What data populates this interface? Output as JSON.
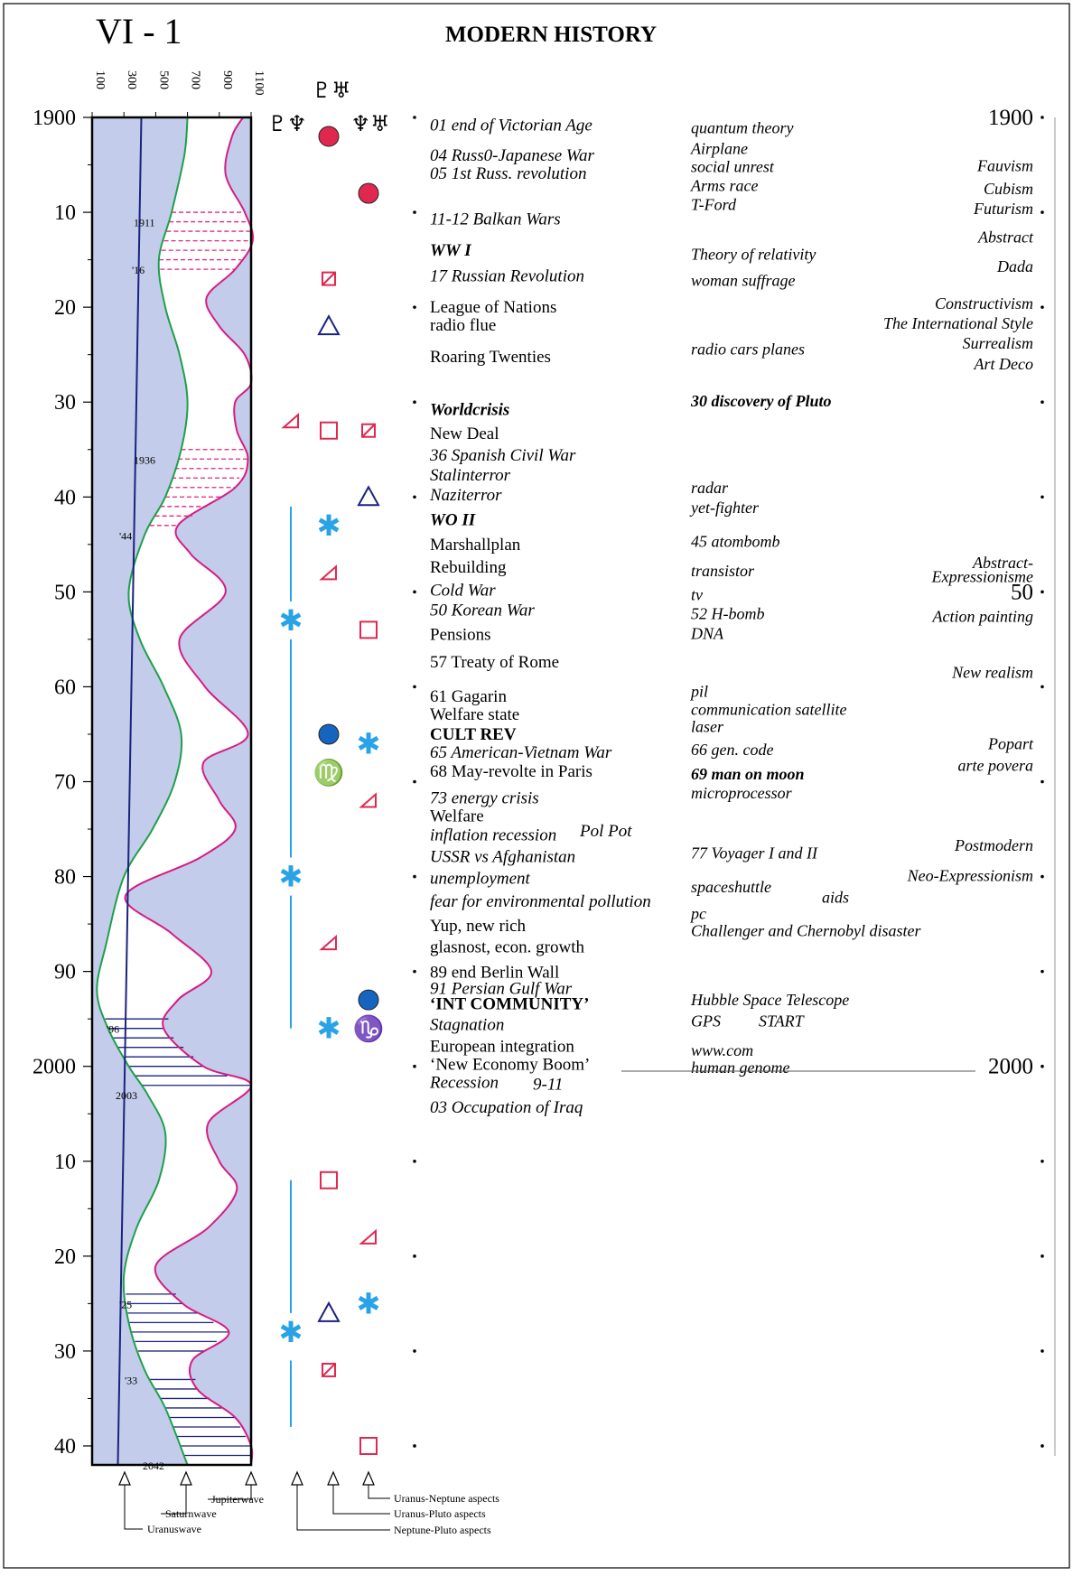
{
  "page_label": "VI - 1",
  "title": "MODERN HISTORY",
  "left_axis": {
    "ticks": [
      {
        "year": 1900,
        "label": "1900"
      },
      {
        "year": 1910,
        "label": "10"
      },
      {
        "year": 1920,
        "label": "20"
      },
      {
        "year": 1930,
        "label": "30"
      },
      {
        "year": 1940,
        "label": "40"
      },
      {
        "year": 1950,
        "label": "50"
      },
      {
        "year": 1960,
        "label": "60"
      },
      {
        "year": 1970,
        "label": "70"
      },
      {
        "year": 1980,
        "label": "80"
      },
      {
        "year": 1990,
        "label": "90"
      },
      {
        "year": 2000,
        "label": "2000"
      },
      {
        "year": 2010,
        "label": "10"
      },
      {
        "year": 2020,
        "label": "20"
      },
      {
        "year": 2030,
        "label": "30"
      },
      {
        "year": 2040,
        "label": "40"
      }
    ]
  },
  "wave_scale": {
    "ticks": [
      {
        "value": 100,
        "label": "100"
      },
      {
        "value": 300,
        "label": "300"
      },
      {
        "value": 500,
        "label": "500"
      },
      {
        "value": 700,
        "label": "700"
      },
      {
        "value": 900,
        "label": "900"
      },
      {
        "value": 1100,
        "label": "1100"
      }
    ],
    "range": [
      100,
      1100
    ]
  },
  "waves": {
    "uranus": [
      [
        1900,
        330
      ],
      [
        2042,
        330
      ]
    ],
    "saturn": [
      [
        1900,
        700
      ],
      [
        1904,
        680
      ],
      [
        1910,
        600
      ],
      [
        1915,
        520
      ],
      [
        1920,
        560
      ],
      [
        1925,
        650
      ],
      [
        1930,
        700
      ],
      [
        1935,
        660
      ],
      [
        1940,
        560
      ],
      [
        1944,
        430
      ],
      [
        1950,
        330
      ],
      [
        1955,
        400
      ],
      [
        1960,
        550
      ],
      [
        1965,
        660
      ],
      [
        1970,
        620
      ],
      [
        1975,
        480
      ],
      [
        1980,
        300
      ],
      [
        1987,
        190
      ],
      [
        1992,
        130
      ],
      [
        1996,
        200
      ],
      [
        2000,
        330
      ],
      [
        2003,
        450
      ],
      [
        2007,
        560
      ],
      [
        2012,
        520
      ],
      [
        2017,
        380
      ],
      [
        2022,
        300
      ],
      [
        2027,
        330
      ],
      [
        2032,
        430
      ],
      [
        2036,
        560
      ],
      [
        2042,
        700
      ]
    ],
    "jupiter": [
      [
        1900,
        1050
      ],
      [
        1902,
        980
      ],
      [
        1906,
        940
      ],
      [
        1910,
        1060
      ],
      [
        1913,
        1110
      ],
      [
        1916,
        1000
      ],
      [
        1919,
        820
      ],
      [
        1922,
        900
      ],
      [
        1925,
        1060
      ],
      [
        1928,
        1100
      ],
      [
        1930,
        1000
      ],
      [
        1933,
        1010
      ],
      [
        1936,
        1080
      ],
      [
        1939,
        1000
      ],
      [
        1943,
        640
      ],
      [
        1946,
        720
      ],
      [
        1950,
        940
      ],
      [
        1955,
        650
      ],
      [
        1960,
        810
      ],
      [
        1965,
        1080
      ],
      [
        1968,
        800
      ],
      [
        1972,
        900
      ],
      [
        1975,
        1000
      ],
      [
        1978,
        780
      ],
      [
        1982,
        310
      ],
      [
        1986,
        600
      ],
      [
        1990,
        850
      ],
      [
        1993,
        640
      ],
      [
        1996,
        550
      ],
      [
        2000,
        800
      ],
      [
        2002,
        1100
      ],
      [
        2006,
        830
      ],
      [
        2010,
        900
      ],
      [
        2013,
        1010
      ],
      [
        2017,
        830
      ],
      [
        2021,
        500
      ],
      [
        2025,
        670
      ],
      [
        2028,
        960
      ],
      [
        2031,
        730
      ],
      [
        2034,
        760
      ],
      [
        2037,
        1000
      ],
      [
        2040,
        1100
      ],
      [
        2042,
        1100
      ]
    ]
  },
  "marked_years": [
    "1911",
    "'16",
    "1936",
    "'44",
    "'96",
    "2003",
    "'25",
    "'33",
    "2042"
  ],
  "aspect_headers": {
    "neptune_pluto": "♇♆",
    "uranus_pluto": "♇♅",
    "uranus_neptune": "♆♅"
  },
  "aspect_symbols": [
    {
      "col": "uranus_pluto",
      "year": 1902,
      "kind": "dot-red",
      "color": "#e0284f"
    },
    {
      "col": "uranus_neptune",
      "year": 1908,
      "kind": "dot-red",
      "color": "#e0284f"
    },
    {
      "col": "uranus_pluto",
      "year": 1917,
      "kind": "sesqui",
      "color": "#e0284f"
    },
    {
      "col": "uranus_pluto",
      "year": 1922,
      "kind": "trine",
      "color": "#1a237e"
    },
    {
      "col": "neptune_pluto",
      "year": 1932,
      "kind": "semisq",
      "color": "#e0284f"
    },
    {
      "col": "uranus_pluto",
      "year": 1933,
      "kind": "square",
      "color": "#e0284f"
    },
    {
      "col": "uranus_neptune",
      "year": 1933,
      "kind": "sesqui",
      "color": "#e0284f"
    },
    {
      "col": "uranus_neptune",
      "year": 1940,
      "kind": "trine",
      "color": "#1a237e"
    },
    {
      "col": "uranus_pluto",
      "year": 1943,
      "kind": "sextile",
      "color": "#2aa3e6"
    },
    {
      "col": "uranus_pluto",
      "year": 1948,
      "kind": "semisq",
      "color": "#e0284f"
    },
    {
      "col": "neptune_pluto",
      "year": 1953,
      "kind": "sextile",
      "color": "#2aa3e6"
    },
    {
      "col": "uranus_neptune",
      "year": 1954,
      "kind": "square",
      "color": "#e0284f"
    },
    {
      "col": "uranus_pluto",
      "year": 1965,
      "kind": "dot-blue",
      "color": "#1565c0"
    },
    {
      "col": "uranus_neptune",
      "year": 1966,
      "kind": "sextile",
      "color": "#2aa3e6"
    },
    {
      "col": "uranus_pluto",
      "year": 1969,
      "kind": "virgo",
      "color": "#e88a1a"
    },
    {
      "col": "uranus_neptune",
      "year": 1972,
      "kind": "semisq",
      "color": "#e0284f"
    },
    {
      "col": "neptune_pluto",
      "year": 1980,
      "kind": "sextile",
      "color": "#2aa3e6"
    },
    {
      "col": "uranus_pluto",
      "year": 1987,
      "kind": "semisq",
      "color": "#e0284f"
    },
    {
      "col": "uranus_neptune",
      "year": 1993,
      "kind": "dot-blue",
      "color": "#1565c0"
    },
    {
      "col": "uranus_pluto",
      "year": 1996,
      "kind": "sextile",
      "color": "#2aa3e6"
    },
    {
      "col": "uranus_neptune",
      "year": 1996,
      "kind": "capricorn",
      "color": "#8b5a2b"
    },
    {
      "col": "uranus_pluto",
      "year": 2012,
      "kind": "square",
      "color": "#e0284f"
    },
    {
      "col": "uranus_neptune",
      "year": 2018,
      "kind": "semisq",
      "color": "#e0284f"
    },
    {
      "col": "uranus_neptune",
      "year": 2025,
      "kind": "sextile",
      "color": "#2aa3e6"
    },
    {
      "col": "uranus_pluto",
      "year": 2026,
      "kind": "trine",
      "color": "#1a237e"
    },
    {
      "col": "neptune_pluto",
      "year": 2028,
      "kind": "sextile",
      "color": "#2aa3e6"
    },
    {
      "col": "uranus_pluto",
      "year": 2032,
      "kind": "sesqui",
      "color": "#e0284f"
    },
    {
      "col": "uranus_neptune",
      "year": 2040,
      "kind": "square",
      "color": "#e0284f"
    }
  ],
  "aspect_lines": [
    {
      "from": 1941,
      "to": 1951
    },
    {
      "from": 1955,
      "to": 1978
    },
    {
      "from": 1982,
      "to": 1996
    },
    {
      "from": 2012,
      "to": 2026
    },
    {
      "from": 2031,
      "to": 2038
    }
  ],
  "events": [
    {
      "year": 1900.8,
      "text": "01 end of Victorian Age",
      "style": "it"
    },
    {
      "year": 1904.0,
      "text": "04 Russ0-Japanese War",
      "style": "it"
    },
    {
      "year": 1905.9,
      "text": "05 1st Russ. revolution",
      "style": "it"
    },
    {
      "year": 1910.7,
      "text": "11-12 Balkan Wars",
      "style": "it"
    },
    {
      "year": 1914.0,
      "text": "WW I",
      "style": "bi"
    },
    {
      "year": 1916.7,
      "text": "17 Russian Revolution",
      "style": "it"
    },
    {
      "year": 1920.0,
      "text": "League of Nations",
      "style": "n"
    },
    {
      "year": 1921.9,
      "text": "radio flue",
      "style": "n"
    },
    {
      "year": 1925.2,
      "text": "Roaring Twenties",
      "style": "n"
    },
    {
      "year": 1930.8,
      "text": "Worldcrisis",
      "style": "bi"
    },
    {
      "year": 1933.3,
      "text": "New Deal",
      "style": "n"
    },
    {
      "year": 1935.6,
      "text": "36 Spanish Civil War",
      "style": "it"
    },
    {
      "year": 1937.7,
      "text": "Stalinterror",
      "style": "it"
    },
    {
      "year": 1939.8,
      "text": "Naziterror",
      "style": "it"
    },
    {
      "year": 1942.4,
      "text": "WO II",
      "style": "bi"
    },
    {
      "year": 1945.0,
      "text": "Marshallplan",
      "style": "n"
    },
    {
      "year": 1947.4,
      "text": "Rebuilding",
      "style": "n"
    },
    {
      "year": 1949.8,
      "text": "Cold War",
      "style": "it"
    },
    {
      "year": 1951.9,
      "text": "50 Korean War",
      "style": "it"
    },
    {
      "year": 1954.5,
      "text": "Pensions",
      "style": "n"
    },
    {
      "year": 1957.4,
      "text": "57 Treaty of Rome",
      "style": "n"
    },
    {
      "year": 1961.0,
      "text": "61 Gagarin",
      "style": "n"
    },
    {
      "year": 1962.9,
      "text": "Welfare state",
      "style": "n"
    },
    {
      "year": 1965.0,
      "text": "CULT REV",
      "style": "b"
    },
    {
      "year": 1966.9,
      "text": "65 American-Vietnam War",
      "style": "it"
    },
    {
      "year": 1968.9,
      "text": "68 May-revolte in Paris",
      "style": "n"
    },
    {
      "year": 1971.7,
      "text": "73 energy crisis",
      "style": "it"
    },
    {
      "year": 1973.6,
      "text": "Welfare",
      "style": "n"
    },
    {
      "year": 1975.6,
      "text": "inflation recession",
      "style": "it"
    },
    {
      "year": 1977.9,
      "text": "USSR vs Afghanistan",
      "style": "it"
    },
    {
      "year": 1980.2,
      "text": "unemployment",
      "style": "it"
    },
    {
      "year": 1982.6,
      "text": "fear for environmental pollution",
      "style": "it"
    },
    {
      "year": 1985.2,
      "text": "Yup, new rich",
      "style": "n"
    },
    {
      "year": 1987.4,
      "text": "glasnost,  econ. growth",
      "style": "n"
    },
    {
      "year": 1990.1,
      "text": "89 end Berlin Wall",
      "style": "n"
    },
    {
      "year": 1991.8,
      "text": "91 Persian Gulf War",
      "style": "it"
    },
    {
      "year": 1993.4,
      "text": "‘INT COMMUNITY’",
      "style": "b"
    },
    {
      "year": 1995.6,
      "text": "Stagnation",
      "style": "it"
    },
    {
      "year": 1997.9,
      "text": "European integration",
      "style": "n"
    },
    {
      "year": 1999.8,
      "text": "‘New Economy Boom’",
      "style": "n"
    },
    {
      "year": 2001.7,
      "text": "Recession",
      "style": "it"
    },
    {
      "year": 2004.3,
      "text": "03 Occupation of Iraq",
      "style": "it"
    }
  ],
  "extra_events": [
    {
      "year": 1975.2,
      "x": 642,
      "text": "Pol Pot",
      "style": "it"
    },
    {
      "year": 2001.9,
      "x": 590,
      "text": "9-11",
      "style": "it"
    }
  ],
  "inventions": [
    {
      "year": 1901.1,
      "text": "quantum theory",
      "style": "it"
    },
    {
      "year": 1903.3,
      "text": "Airplane",
      "style": "it"
    },
    {
      "year": 1905.2,
      "text": "social unrest",
      "style": "it"
    },
    {
      "year": 1907.2,
      "text": "Arms race",
      "style": "it"
    },
    {
      "year": 1909.2,
      "text": "T-Ford",
      "style": "it"
    },
    {
      "year": 1914.4,
      "text": "Theory of relativity",
      "style": "it"
    },
    {
      "year": 1917.2,
      "text": "woman suffrage",
      "style": "it"
    },
    {
      "year": 1924.4,
      "text": "radio cars planes",
      "style": "it"
    },
    {
      "year": 1929.9,
      "text": "30 discovery of Pluto",
      "style": "bi"
    },
    {
      "year": 1939.0,
      "text": "radar",
      "style": "it"
    },
    {
      "year": 1941.1,
      "text": "yet-fighter",
      "style": "it"
    },
    {
      "year": 1944.7,
      "text": "45 atombomb",
      "style": "it"
    },
    {
      "year": 1947.8,
      "text": "transistor",
      "style": "it"
    },
    {
      "year": 1950.3,
      "text": "tv",
      "style": "it"
    },
    {
      "year": 1952.3,
      "text": "52 H-bomb",
      "style": "it"
    },
    {
      "year": 1954.4,
      "text": "DNA",
      "style": "it"
    },
    {
      "year": 1960.5,
      "text": "pil",
      "style": "it"
    },
    {
      "year": 1962.4,
      "text": "communication satellite",
      "style": "it"
    },
    {
      "year": 1964.2,
      "text": "laser",
      "style": "it"
    },
    {
      "year": 1966.6,
      "text": "66 gen. code",
      "style": "it"
    },
    {
      "year": 1969.2,
      "text": "69 man on moon",
      "style": "bi"
    },
    {
      "year": 1971.2,
      "text": "microprocessor",
      "style": "it"
    },
    {
      "year": 1977.5,
      "text": "77 Voyager I and II",
      "style": "it"
    },
    {
      "year": 1981.1,
      "text": "spaceshuttle",
      "style": "it"
    },
    {
      "year": 1983.9,
      "text": "pc",
      "style": "it"
    },
    {
      "year": 1985.7,
      "text": "Challenger and Chernobyl disaster",
      "style": "it"
    },
    {
      "year": 1993.0,
      "text": "Hubble Space Telescope",
      "style": "it"
    },
    {
      "year": 1995.2,
      "text": "GPS",
      "style": "it"
    },
    {
      "year": 1998.3,
      "text": "www.com",
      "style": "it"
    },
    {
      "year": 2000.1,
      "text": "human  genome",
      "style": "it"
    }
  ],
  "extra_inventions": [
    {
      "year": 1995.2,
      "x": 840,
      "text": "START",
      "style": "it"
    },
    {
      "year": 1982.2,
      "x": 910,
      "text": "aids",
      "style": "it"
    }
  ],
  "art": [
    {
      "year": 1905.1,
      "text": "Fauvism"
    },
    {
      "year": 1907.5,
      "text": "Cubism"
    },
    {
      "year": 1909.6,
      "text": "Futurism"
    },
    {
      "year": 1912.6,
      "text": "Abstract"
    },
    {
      "year": 1915.7,
      "text": "Dada"
    },
    {
      "year": 1919.6,
      "text": "Constructivism"
    },
    {
      "year": 1921.7,
      "text": "The International Style"
    },
    {
      "year": 1923.8,
      "text": "Surrealism"
    },
    {
      "year": 1926.0,
      "text": "Art Deco"
    },
    {
      "year": 1946.9,
      "text": "Abstract-"
    },
    {
      "year": 1948.4,
      "text": "Expressionisme"
    },
    {
      "year": 1952.6,
      "text": "Action painting"
    },
    {
      "year": 1958.5,
      "text": "New realism"
    },
    {
      "year": 1966.0,
      "text": "Popart"
    },
    {
      "year": 1968.3,
      "text": "arte povera"
    },
    {
      "year": 1976.7,
      "text": "Postmodern"
    },
    {
      "year": 1979.9,
      "text": "Neo-Expressionism"
    }
  ],
  "right_axis_labels": [
    {
      "year": 1900,
      "text": "1900"
    },
    {
      "year": 1950,
      "text": "50"
    },
    {
      "year": 2000,
      "text": "2000"
    }
  ],
  "legend": {
    "uranuswave": "Uranuswave",
    "saturnwave": "Saturnwave",
    "jupiterwave": "Jupiterwave",
    "uranus_neptune": "Uranus-Neptune  aspects",
    "uranus_pluto": "Uranus-Pluto aspects",
    "neptune_pluto": "Neptune-Pluto aspects"
  },
  "colors": {
    "fill": "#c3cdeb",
    "uranus": "#1a237e",
    "saturn": "#1ea04a",
    "jupiter": "#d81b83",
    "hatch_pink": "#e0247c",
    "hatch_blue": "#1a237e",
    "aspect_line": "#2aa3e6"
  }
}
